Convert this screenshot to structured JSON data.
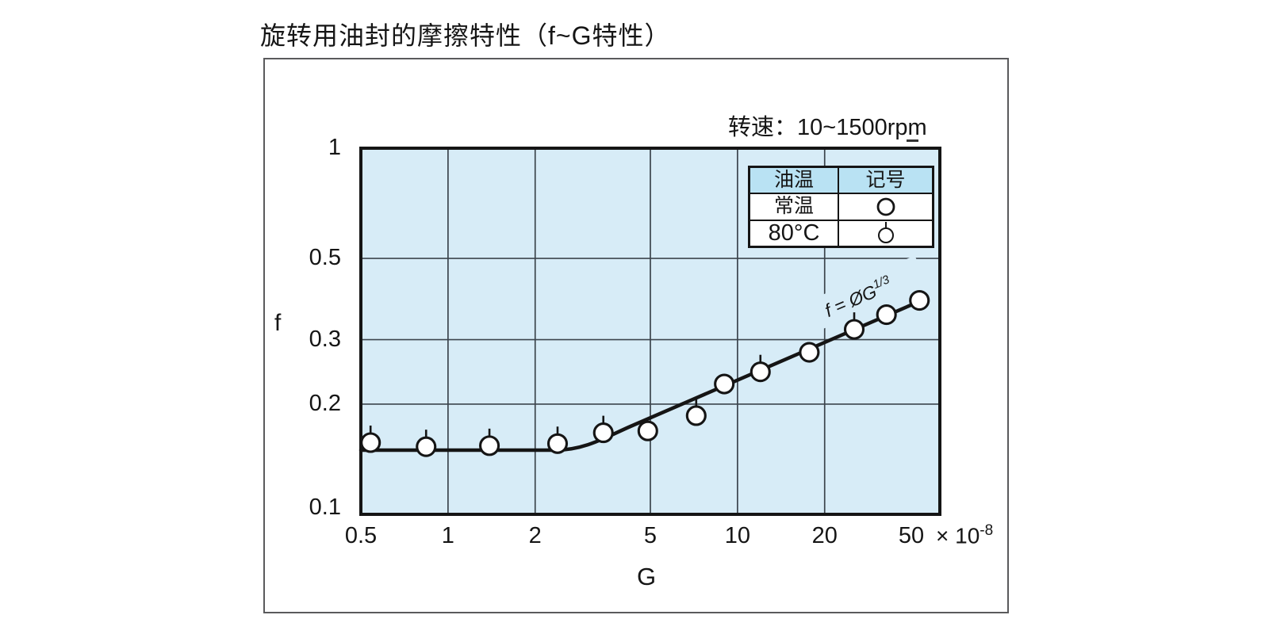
{
  "title": "旋转用油封的摩擦特性（f~G特性）",
  "speed_note": "转速：10~1500rpm",
  "legend": {
    "col1_header": "油温",
    "col2_header": "记号",
    "rows": [
      {
        "label": "常温",
        "symbol": "circle"
      },
      {
        "label": "80°C",
        "symbol": "circle-with-tick"
      }
    ]
  },
  "chart_data": {
    "type": "scatter",
    "title": "旋转用油封的摩擦特性（f~G特性）",
    "xlabel": "G",
    "ylabel": "f",
    "x_unit_base": "× 10",
    "x_unit_exponent": "-8",
    "x_scale": "log",
    "y_scale": "log",
    "grid": true,
    "xlim": [
      0.5,
      50
    ],
    "ylim": [
      0.1,
      1
    ],
    "x_ticks": [
      0.5,
      1,
      2,
      5,
      10,
      20,
      50
    ],
    "y_ticks": [
      1,
      0.5,
      0.3,
      0.2,
      0.1
    ],
    "x_tick_dx": {
      "50": -36
    },
    "y_tick_dy": {
      "0.1": -8
    },
    "annotation_text": "f = ØG",
    "annotation_sup": "1/3",
    "series": [
      {
        "name": "常温",
        "symbol": "circle",
        "points": [
          [
            4.9,
            0.169
          ],
          [
            9.0,
            0.227
          ],
          [
            17.7,
            0.277
          ],
          [
            32.7,
            0.351
          ],
          [
            42.5,
            0.384
          ]
        ]
      },
      {
        "name": "80°C",
        "symbol": "circle-with-tick",
        "points": [
          [
            0.54,
            0.157
          ],
          [
            0.84,
            0.153
          ],
          [
            1.39,
            0.154
          ],
          [
            2.39,
            0.156
          ],
          [
            3.44,
            0.167
          ],
          [
            7.2,
            0.186
          ],
          [
            12.0,
            0.245
          ],
          [
            25.3,
            0.32
          ]
        ]
      }
    ],
    "fit_line_px": "M455,568 L700,568 C738,568 765,551 795,538 L1160,380"
  },
  "colors": {
    "plot_bg": "#d7ecf7",
    "legend_header_bg": "#b9e2f3",
    "ink": "#151515",
    "grid": "#3c454d",
    "outer_border": "#5a5a5c"
  }
}
